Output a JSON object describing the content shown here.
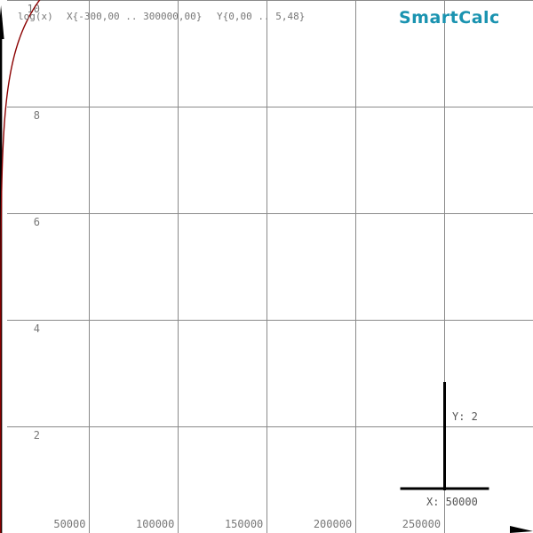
{
  "app": {
    "brand": "SmartCalc",
    "brand_color": "#1a93b0"
  },
  "header": {
    "expression": "log(x)",
    "x_range_text": "X{-300,00 .. 300000,00}",
    "y_range_text": "Y{0,00 .. 5,48}"
  },
  "scale_indicator": {
    "y_label": "Y: 2",
    "x_label": "X: 50000"
  },
  "colors": {
    "grid": "#8a8a8a",
    "curve": "#8b0000",
    "axis": "#000000",
    "text": "#777777"
  },
  "chart_data": {
    "type": "line",
    "function": "log(x)",
    "xlim": [
      -300,
      300000
    ],
    "ylim": [
      0,
      10
    ],
    "grid": true,
    "x_ticks": [
      50000,
      100000,
      150000,
      200000,
      250000
    ],
    "x_tick_labels": [
      "50000",
      "100000",
      "150000",
      "200000",
      "250000"
    ],
    "y_ticks": [
      2,
      4,
      6,
      8,
      10
    ],
    "y_tick_labels": [
      "2",
      "4",
      "6",
      "8",
      "10"
    ],
    "scale_x": 50000,
    "scale_y": 2
  }
}
